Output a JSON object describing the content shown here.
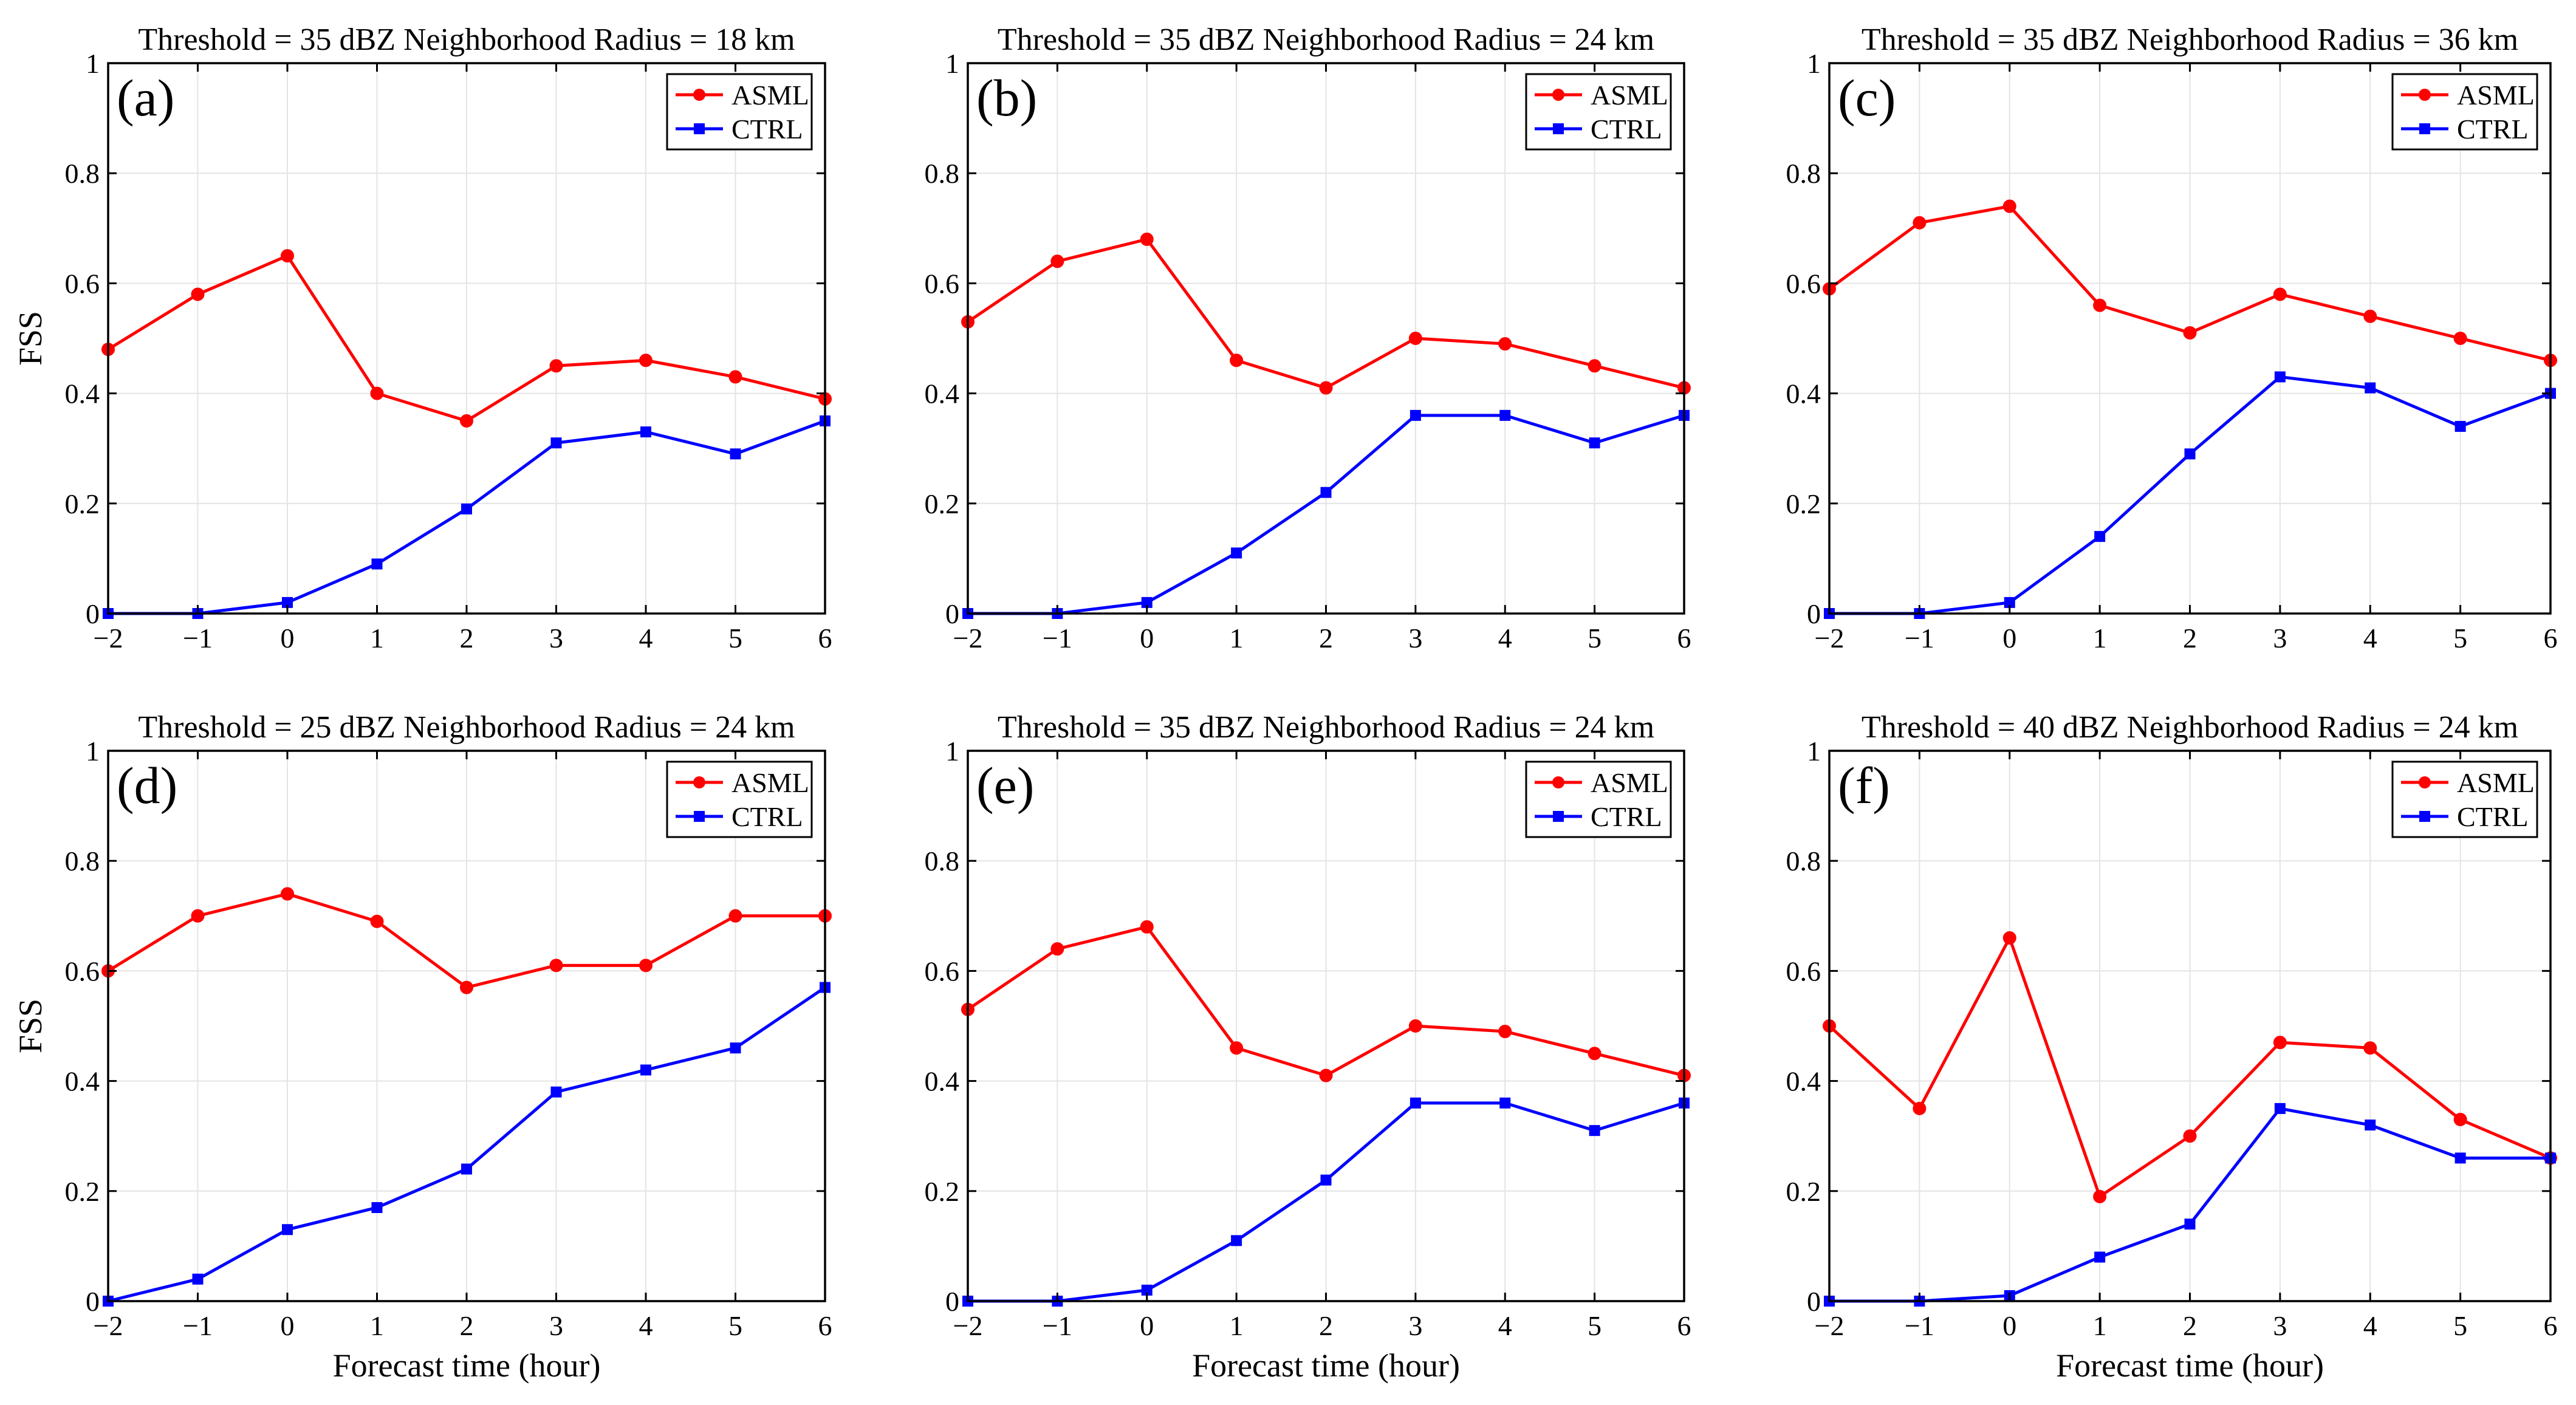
{
  "chart_data": [
    {
      "type": "line",
      "panel_label": "(a)",
      "title": "Threshold = 35 dBZ Neighborhood Radius = 18 km",
      "xlabel": "",
      "ylabel": "FSS",
      "x": [
        -2,
        -1,
        0,
        1,
        2,
        3,
        4,
        5,
        6
      ],
      "x_tick_labels": [
        "−2",
        "−1",
        "0",
        "1",
        "2",
        "3",
        "4",
        "5",
        "6"
      ],
      "y_tick_labels": [
        "0",
        "0.2",
        "0.4",
        "0.6",
        "0.8",
        "1"
      ],
      "xlim": [
        -2,
        6
      ],
      "ylim": [
        0,
        1
      ],
      "grid": true,
      "legend_position": "top-right",
      "series": [
        {
          "name": "ASML",
          "color": "#ff0000",
          "marker": "circle",
          "values": [
            0.48,
            0.58,
            0.65,
            0.4,
            0.35,
            0.45,
            0.46,
            0.43,
            0.39
          ]
        },
        {
          "name": "CTRL",
          "color": "#0000ff",
          "marker": "square",
          "values": [
            0.0,
            0.0,
            0.02,
            0.09,
            0.19,
            0.31,
            0.33,
            0.29,
            0.35
          ]
        }
      ]
    },
    {
      "type": "line",
      "panel_label": "(b)",
      "title": "Threshold = 35 dBZ Neighborhood Radius = 24 km",
      "xlabel": "",
      "ylabel": "",
      "x": [
        -2,
        -1,
        0,
        1,
        2,
        3,
        4,
        5,
        6
      ],
      "x_tick_labels": [
        "−2",
        "−1",
        "0",
        "1",
        "2",
        "3",
        "4",
        "5",
        "6"
      ],
      "y_tick_labels": [
        "0",
        "0.2",
        "0.4",
        "0.6",
        "0.8",
        "1"
      ],
      "xlim": [
        -2,
        6
      ],
      "ylim": [
        0,
        1
      ],
      "grid": true,
      "legend_position": "top-right",
      "series": [
        {
          "name": "ASML",
          "color": "#ff0000",
          "marker": "circle",
          "values": [
            0.53,
            0.64,
            0.68,
            0.46,
            0.41,
            0.5,
            0.49,
            0.45,
            0.41
          ]
        },
        {
          "name": "CTRL",
          "color": "#0000ff",
          "marker": "square",
          "values": [
            0.0,
            0.0,
            0.02,
            0.11,
            0.22,
            0.36,
            0.36,
            0.31,
            0.36
          ]
        }
      ]
    },
    {
      "type": "line",
      "panel_label": "(c)",
      "title": "Threshold = 35 dBZ Neighborhood Radius = 36 km",
      "xlabel": "",
      "ylabel": "",
      "x": [
        -2,
        -1,
        0,
        1,
        2,
        3,
        4,
        5,
        6
      ],
      "x_tick_labels": [
        "−2",
        "−1",
        "0",
        "1",
        "2",
        "3",
        "4",
        "5",
        "6"
      ],
      "y_tick_labels": [
        "0",
        "0.2",
        "0.4",
        "0.6",
        "0.8",
        "1"
      ],
      "xlim": [
        -2,
        6
      ],
      "ylim": [
        0,
        1
      ],
      "grid": true,
      "legend_position": "top-right",
      "series": [
        {
          "name": "ASML",
          "color": "#ff0000",
          "marker": "circle",
          "values": [
            0.59,
            0.71,
            0.74,
            0.56,
            0.51,
            0.58,
            0.54,
            0.5,
            0.46
          ]
        },
        {
          "name": "CTRL",
          "color": "#0000ff",
          "marker": "square",
          "values": [
            0.0,
            0.0,
            0.02,
            0.14,
            0.29,
            0.43,
            0.41,
            0.34,
            0.4
          ]
        }
      ]
    },
    {
      "type": "line",
      "panel_label": "(d)",
      "title": "Threshold = 25 dBZ Neighborhood Radius = 24 km",
      "xlabel": "Forecast time (hour)",
      "ylabel": "FSS",
      "x": [
        -2,
        -1,
        0,
        1,
        2,
        3,
        4,
        5,
        6
      ],
      "x_tick_labels": [
        "−2",
        "−1",
        "0",
        "1",
        "2",
        "3",
        "4",
        "5",
        "6"
      ],
      "y_tick_labels": [
        "0",
        "0.2",
        "0.4",
        "0.6",
        "0.8",
        "1"
      ],
      "xlim": [
        -2,
        6
      ],
      "ylim": [
        0,
        1
      ],
      "grid": true,
      "legend_position": "top-right",
      "series": [
        {
          "name": "ASML",
          "color": "#ff0000",
          "marker": "circle",
          "values": [
            0.6,
            0.7,
            0.74,
            0.69,
            0.57,
            0.61,
            0.61,
            0.7,
            0.7
          ]
        },
        {
          "name": "CTRL",
          "color": "#0000ff",
          "marker": "square",
          "values": [
            0.0,
            0.04,
            0.13,
            0.17,
            0.24,
            0.38,
            0.42,
            0.46,
            0.57
          ]
        }
      ]
    },
    {
      "type": "line",
      "panel_label": "(e)",
      "title": "Threshold = 35 dBZ Neighborhood Radius = 24 km",
      "xlabel": "Forecast time (hour)",
      "ylabel": "",
      "x": [
        -2,
        -1,
        0,
        1,
        2,
        3,
        4,
        5,
        6
      ],
      "x_tick_labels": [
        "−2",
        "−1",
        "0",
        "1",
        "2",
        "3",
        "4",
        "5",
        "6"
      ],
      "y_tick_labels": [
        "0",
        "0.2",
        "0.4",
        "0.6",
        "0.8",
        "1"
      ],
      "xlim": [
        -2,
        6
      ],
      "ylim": [
        0,
        1
      ],
      "grid": true,
      "legend_position": "top-right",
      "series": [
        {
          "name": "ASML",
          "color": "#ff0000",
          "marker": "circle",
          "values": [
            0.53,
            0.64,
            0.68,
            0.46,
            0.41,
            0.5,
            0.49,
            0.45,
            0.41
          ]
        },
        {
          "name": "CTRL",
          "color": "#0000ff",
          "marker": "square",
          "values": [
            0.0,
            0.0,
            0.02,
            0.11,
            0.22,
            0.36,
            0.36,
            0.31,
            0.36
          ]
        }
      ]
    },
    {
      "type": "line",
      "panel_label": "(f)",
      "title": "Threshold = 40 dBZ Neighborhood Radius = 24 km",
      "xlabel": "Forecast time (hour)",
      "ylabel": "",
      "x": [
        -2,
        -1,
        0,
        1,
        2,
        3,
        4,
        5,
        6
      ],
      "x_tick_labels": [
        "−2",
        "−1",
        "0",
        "1",
        "2",
        "3",
        "4",
        "5",
        "6"
      ],
      "y_tick_labels": [
        "0",
        "0.2",
        "0.4",
        "0.6",
        "0.8",
        "1"
      ],
      "xlim": [
        -2,
        6
      ],
      "ylim": [
        0,
        1
      ],
      "grid": true,
      "legend_position": "top-right",
      "series": [
        {
          "name": "ASML",
          "color": "#ff0000",
          "marker": "circle",
          "values": [
            0.5,
            0.35,
            0.66,
            0.19,
            0.3,
            0.47,
            0.46,
            0.33,
            0.26
          ]
        },
        {
          "name": "CTRL",
          "color": "#0000ff",
          "marker": "square",
          "values": [
            0.0,
            0.0,
            0.01,
            0.08,
            0.14,
            0.35,
            0.32,
            0.26,
            0.26
          ]
        }
      ]
    }
  ]
}
